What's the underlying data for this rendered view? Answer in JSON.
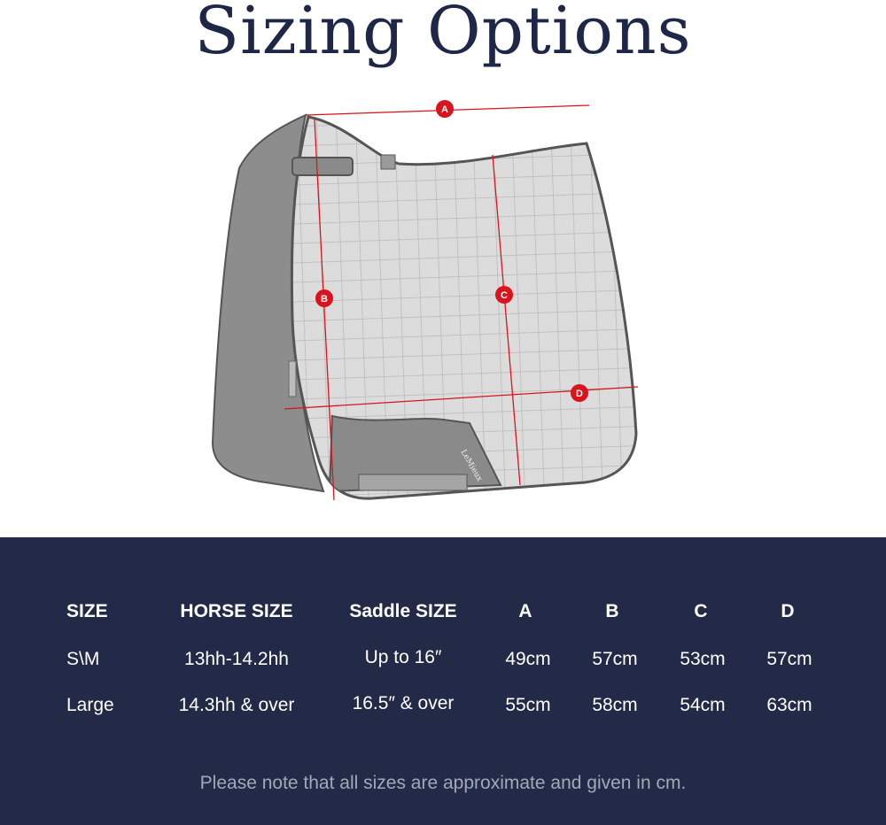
{
  "title": "Sizing Options",
  "diagram": {
    "markers": [
      "A",
      "B",
      "C",
      "D"
    ],
    "marker_color": "#d9141c",
    "brand_label": "LeMieux"
  },
  "table": {
    "headers": [
      "SIZE",
      "HORSE SIZE",
      "Saddle SIZE",
      "A",
      "B",
      "C",
      "D"
    ],
    "rows": [
      [
        "S\\M",
        "13hh-14.2hh",
        "Up to 16″",
        "49cm",
        "57cm",
        "53cm",
        "57cm"
      ],
      [
        "Large",
        "14.3hh & over",
        "16.5″ & over",
        "55cm",
        "58cm",
        "54cm",
        "63cm"
      ]
    ]
  },
  "note": "Please note that all sizes are approximate and given in cm.",
  "colors": {
    "panel": "#232a47",
    "title": "#1f2748"
  }
}
